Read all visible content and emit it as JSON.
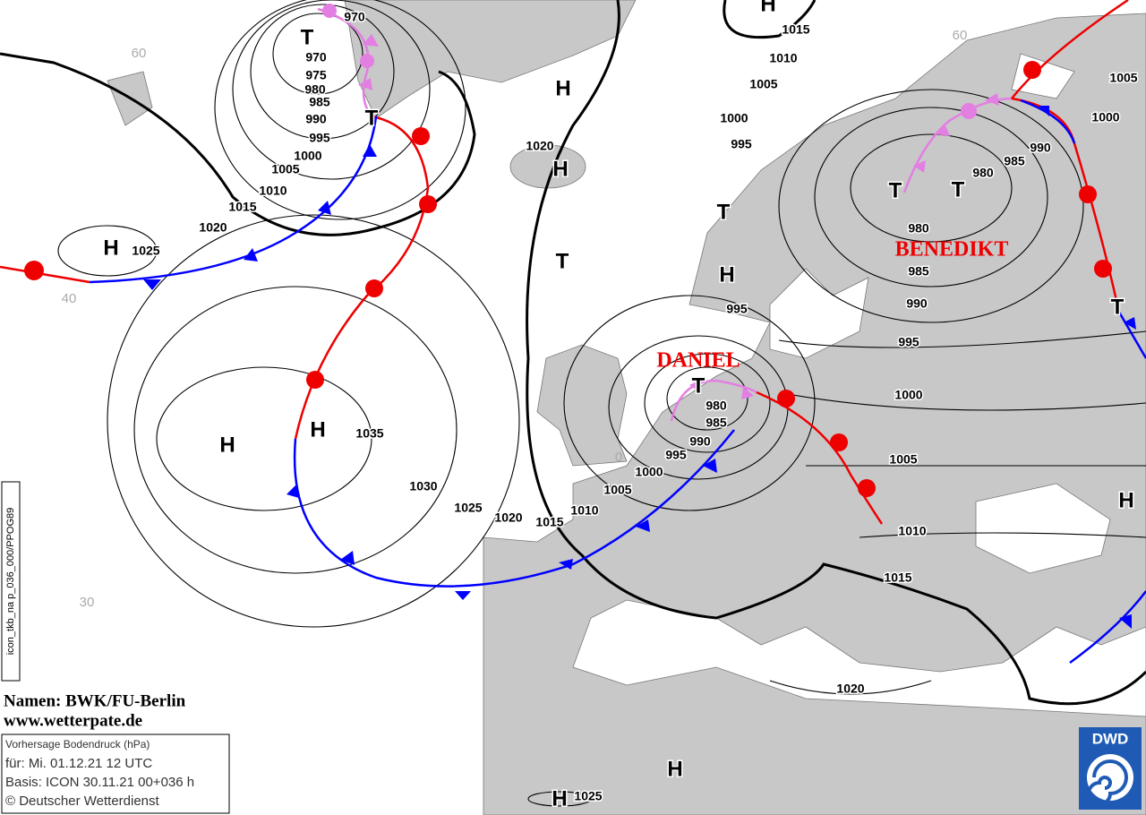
{
  "isobar_labels": [
    "970",
    "970",
    "975",
    "980",
    "985",
    "990",
    "995",
    "1000",
    "1005",
    "1010",
    "1015",
    "1020",
    "1025",
    "1015",
    "1010",
    "1005",
    "1000",
    "995",
    "1020",
    "995",
    "1005",
    "1000",
    "990",
    "985",
    "980",
    "980",
    "985",
    "990",
    "995",
    "1000",
    "1005",
    "1010",
    "1015",
    "980",
    "985",
    "990",
    "995",
    "1000",
    "1005",
    "1010",
    "1015",
    "1020",
    "1025",
    "1030",
    "1035",
    "1020",
    "1025"
  ],
  "pressure_centers": [
    "T",
    "T",
    "H",
    "H",
    "H",
    "H",
    "T",
    "T",
    "H",
    "T",
    "T",
    "T",
    "H",
    "T",
    "H",
    "H",
    "H",
    "H"
  ],
  "storm_names": [
    "BENEDIKT",
    "DANIEL"
  ],
  "latitude_labels": [
    "60",
    "40",
    "30",
    "0",
    "60"
  ],
  "attribution": {
    "names": "Namen: BWK/FU-Berlin",
    "website": "www.wetterpate.de"
  },
  "info_box": {
    "title": "Vorhersage Bodendruck (hPa)",
    "valid": "für:  Mi. 01.12.21  12 UTC",
    "base": "Basis: ICON  30.11.21 00+036 h",
    "copyright": "© Deutscher Wetterdienst"
  },
  "side_label": "icon_tkb_na p_036_000/PPOG89",
  "logo": "DWD"
}
